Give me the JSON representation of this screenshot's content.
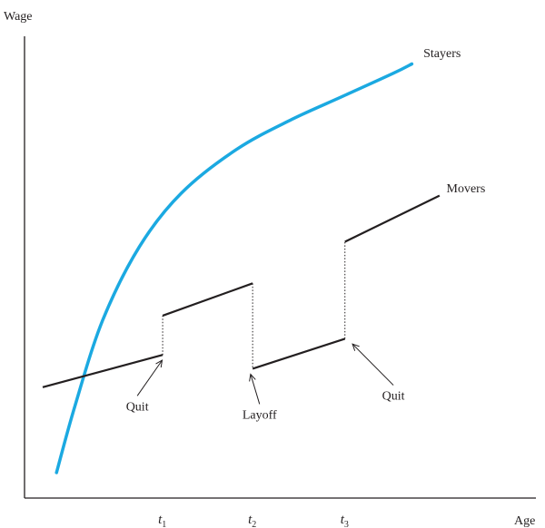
{
  "chart_data": {
    "type": "line",
    "title": "",
    "ylabel": "Wage",
    "xlabel": "Age",
    "xlim": [
      0,
      10
    ],
    "ylim": [
      0,
      10
    ],
    "x_ticks": [
      {
        "x": 2.6,
        "base": "t",
        "sub": "1"
      },
      {
        "x": 4.55,
        "base": "t",
        "sub": "2"
      },
      {
        "x": 6.55,
        "base": "t",
        "sub": "3"
      }
    ],
    "series": [
      {
        "name": "Stayers",
        "color": "#1ba9e1",
        "curve": true,
        "points": [
          [
            0.3,
            0.55
          ],
          [
            0.7,
            2.0
          ],
          [
            1.3,
            3.85
          ],
          [
            2.1,
            5.45
          ],
          [
            3.0,
            6.6
          ],
          [
            4.2,
            7.55
          ],
          [
            5.4,
            8.2
          ],
          [
            6.5,
            8.7
          ],
          [
            7.6,
            9.2
          ],
          [
            8.0,
            9.4
          ]
        ]
      },
      {
        "name": "Movers",
        "color": "#231f20",
        "curve": false,
        "segments": [
          [
            [
              0.0,
              2.4
            ],
            [
              2.6,
              3.1
            ]
          ],
          [
            [
              2.6,
              3.95
            ],
            [
              4.55,
              4.65
            ]
          ],
          [
            [
              4.55,
              2.8
            ],
            [
              6.55,
              3.45
            ]
          ],
          [
            [
              6.55,
              5.55
            ],
            [
              8.6,
              6.55
            ]
          ]
        ]
      }
    ],
    "jumps": [
      {
        "x": 2.6,
        "y1": 3.1,
        "y2": 3.95
      },
      {
        "x": 4.55,
        "y1": 4.65,
        "y2": 2.8
      },
      {
        "x": 6.55,
        "y1": 3.45,
        "y2": 5.55
      }
    ],
    "annotations": [
      {
        "text": "Stayers",
        "x": 8.25,
        "y": 9.55
      },
      {
        "text": "Movers",
        "x": 8.75,
        "y": 6.62
      },
      {
        "text": "Quit",
        "x": 2.05,
        "y": 1.9,
        "arrow_to": [
          2.6,
          3.0
        ]
      },
      {
        "text": "Layoff",
        "x": 4.7,
        "y": 1.72,
        "arrow_to": [
          4.5,
          2.7
        ]
      },
      {
        "text": "Quit",
        "x": 7.6,
        "y": 2.13,
        "arrow_to": [
          6.7,
          3.35
        ]
      }
    ]
  }
}
